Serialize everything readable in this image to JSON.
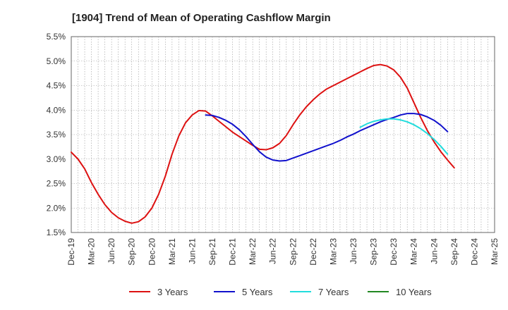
{
  "chart_data": {
    "type": "line",
    "title": "[1904]  Trend of Mean of Operating Cashflow Margin",
    "xlabel": "",
    "ylabel": "",
    "ylim": [
      1.5,
      5.5
    ],
    "y_ticks": [
      "5.5%",
      "5.0%",
      "4.5%",
      "4.0%",
      "3.5%",
      "3.0%",
      "2.5%",
      "2.0%",
      "1.5%"
    ],
    "y_tick_values": [
      5.5,
      5.0,
      4.5,
      4.0,
      3.5,
      3.0,
      2.5,
      2.0,
      1.5
    ],
    "x_ticks": [
      "Dec-19",
      "Mar-20",
      "Jun-20",
      "Sep-20",
      "Dec-20",
      "Mar-21",
      "Jun-21",
      "Sep-21",
      "Dec-21",
      "Mar-22",
      "Jun-22",
      "Sep-22",
      "Dec-22",
      "Mar-23",
      "Jun-23",
      "Sep-23",
      "Dec-23",
      "Mar-24",
      "Jun-24",
      "Sep-24",
      "Dec-24",
      "Mar-25"
    ],
    "grid": true,
    "legend_position": "bottom",
    "series": [
      {
        "name": "3 Years",
        "color": "#dd1111",
        "values": [
          {
            "x": "Dec-19",
            "y": 3.14
          },
          {
            "x": "Jan-20",
            "y": 3.0
          },
          {
            "x": "Feb-20",
            "y": 2.8
          },
          {
            "x": "Mar-20",
            "y": 2.52
          },
          {
            "x": "Apr-20",
            "y": 2.28
          },
          {
            "x": "May-20",
            "y": 2.07
          },
          {
            "x": "Jun-20",
            "y": 1.91
          },
          {
            "x": "Jul-20",
            "y": 1.8
          },
          {
            "x": "Aug-20",
            "y": 1.73
          },
          {
            "x": "Sep-20",
            "y": 1.69
          },
          {
            "x": "Oct-20",
            "y": 1.72
          },
          {
            "x": "Nov-20",
            "y": 1.82
          },
          {
            "x": "Dec-20",
            "y": 2.0
          },
          {
            "x": "Jan-21",
            "y": 2.28
          },
          {
            "x": "Feb-21",
            "y": 2.65
          },
          {
            "x": "Mar-21",
            "y": 3.1
          },
          {
            "x": "Apr-21",
            "y": 3.47
          },
          {
            "x": "May-21",
            "y": 3.74
          },
          {
            "x": "Jun-21",
            "y": 3.9
          },
          {
            "x": "Jul-21",
            "y": 3.99
          },
          {
            "x": "Aug-21",
            "y": 3.98
          },
          {
            "x": "Sep-21",
            "y": 3.88
          },
          {
            "x": "Oct-21",
            "y": 3.77
          },
          {
            "x": "Nov-21",
            "y": 3.66
          },
          {
            "x": "Dec-21",
            "y": 3.55
          },
          {
            "x": "Jan-22",
            "y": 3.46
          },
          {
            "x": "Feb-22",
            "y": 3.37
          },
          {
            "x": "Mar-22",
            "y": 3.28
          },
          {
            "x": "Apr-22",
            "y": 3.2
          },
          {
            "x": "May-22",
            "y": 3.19
          },
          {
            "x": "Jun-22",
            "y": 3.23
          },
          {
            "x": "Jul-22",
            "y": 3.32
          },
          {
            "x": "Aug-22",
            "y": 3.48
          },
          {
            "x": "Sep-22",
            "y": 3.7
          },
          {
            "x": "Oct-22",
            "y": 3.9
          },
          {
            "x": "Nov-22",
            "y": 4.07
          },
          {
            "x": "Dec-22",
            "y": 4.21
          },
          {
            "x": "Jan-23",
            "y": 4.33
          },
          {
            "x": "Feb-23",
            "y": 4.43
          },
          {
            "x": "Mar-23",
            "y": 4.5
          },
          {
            "x": "Apr-23",
            "y": 4.57
          },
          {
            "x": "May-23",
            "y": 4.64
          },
          {
            "x": "Jun-23",
            "y": 4.71
          },
          {
            "x": "Jul-23",
            "y": 4.78
          },
          {
            "x": "Aug-23",
            "y": 4.85
          },
          {
            "x": "Sep-23",
            "y": 4.91
          },
          {
            "x": "Oct-23",
            "y": 4.93
          },
          {
            "x": "Nov-23",
            "y": 4.9
          },
          {
            "x": "Dec-23",
            "y": 4.82
          },
          {
            "x": "Jan-24",
            "y": 4.67
          },
          {
            "x": "Feb-24",
            "y": 4.45
          },
          {
            "x": "Mar-24",
            "y": 4.15
          },
          {
            "x": "Apr-24",
            "y": 3.85
          },
          {
            "x": "May-24",
            "y": 3.58
          },
          {
            "x": "Jun-24",
            "y": 3.35
          },
          {
            "x": "Jul-24",
            "y": 3.15
          },
          {
            "x": "Aug-24",
            "y": 2.98
          },
          {
            "x": "Sep-24",
            "y": 2.82
          }
        ]
      },
      {
        "name": "5 Years",
        "color": "#1111cc",
        "values": [
          {
            "x": "Aug-21",
            "y": 3.9
          },
          {
            "x": "Sep-21",
            "y": 3.89
          },
          {
            "x": "Oct-21",
            "y": 3.85
          },
          {
            "x": "Nov-21",
            "y": 3.79
          },
          {
            "x": "Dec-21",
            "y": 3.71
          },
          {
            "x": "Jan-22",
            "y": 3.6
          },
          {
            "x": "Feb-22",
            "y": 3.46
          },
          {
            "x": "Mar-22",
            "y": 3.3
          },
          {
            "x": "Apr-22",
            "y": 3.15
          },
          {
            "x": "May-22",
            "y": 3.04
          },
          {
            "x": "Jun-22",
            "y": 2.98
          },
          {
            "x": "Jul-22",
            "y": 2.96
          },
          {
            "x": "Aug-22",
            "y": 2.97
          },
          {
            "x": "Sep-22",
            "y": 3.02
          },
          {
            "x": "Oct-22",
            "y": 3.07
          },
          {
            "x": "Nov-22",
            "y": 3.12
          },
          {
            "x": "Dec-22",
            "y": 3.17
          },
          {
            "x": "Jan-23",
            "y": 3.22
          },
          {
            "x": "Feb-23",
            "y": 3.27
          },
          {
            "x": "Mar-23",
            "y": 3.32
          },
          {
            "x": "Apr-23",
            "y": 3.38
          },
          {
            "x": "May-23",
            "y": 3.45
          },
          {
            "x": "Jun-23",
            "y": 3.51
          },
          {
            "x": "Jul-23",
            "y": 3.58
          },
          {
            "x": "Aug-23",
            "y": 3.64
          },
          {
            "x": "Sep-23",
            "y": 3.7
          },
          {
            "x": "Oct-23",
            "y": 3.76
          },
          {
            "x": "Nov-23",
            "y": 3.81
          },
          {
            "x": "Dec-23",
            "y": 3.85
          },
          {
            "x": "Jan-24",
            "y": 3.9
          },
          {
            "x": "Feb-24",
            "y": 3.93
          },
          {
            "x": "Mar-24",
            "y": 3.93
          },
          {
            "x": "Apr-24",
            "y": 3.91
          },
          {
            "x": "May-24",
            "y": 3.86
          },
          {
            "x": "Jun-24",
            "y": 3.79
          },
          {
            "x": "Jul-24",
            "y": 3.69
          },
          {
            "x": "Aug-24",
            "y": 3.56
          }
        ]
      },
      {
        "name": "7 Years",
        "color": "#22dddd",
        "values": [
          {
            "x": "Jul-23",
            "y": 3.65
          },
          {
            "x": "Aug-23",
            "y": 3.72
          },
          {
            "x": "Sep-23",
            "y": 3.77
          },
          {
            "x": "Oct-23",
            "y": 3.8
          },
          {
            "x": "Nov-23",
            "y": 3.82
          },
          {
            "x": "Dec-23",
            "y": 3.82
          },
          {
            "x": "Jan-24",
            "y": 3.8
          },
          {
            "x": "Feb-24",
            "y": 3.76
          },
          {
            "x": "Mar-24",
            "y": 3.7
          },
          {
            "x": "Apr-24",
            "y": 3.62
          },
          {
            "x": "May-24",
            "y": 3.52
          },
          {
            "x": "Jun-24",
            "y": 3.4
          },
          {
            "x": "Jul-24",
            "y": 3.26
          },
          {
            "x": "Aug-24",
            "y": 3.1
          }
        ]
      },
      {
        "name": "10 Years",
        "color": "#228822",
        "values": []
      }
    ]
  }
}
